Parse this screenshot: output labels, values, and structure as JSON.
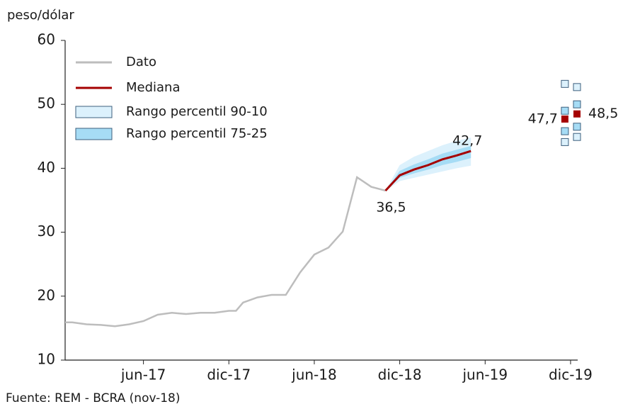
{
  "chart_data": {
    "type": "line",
    "y_label": "peso/dólar",
    "source": "Fuente: REM - BCRA (nov-18)",
    "xlim": [
      -5.5,
      30.5
    ],
    "xticks": [
      {
        "value": 0,
        "label": "jun-17"
      },
      {
        "value": 6,
        "label": "dic-17"
      },
      {
        "value": 12,
        "label": "jun-18"
      },
      {
        "value": 18,
        "label": "dic-18"
      },
      {
        "value": 24,
        "label": "jun-19"
      },
      {
        "value": 30,
        "label": "dic-19"
      }
    ],
    "ylim": [
      10,
      60
    ],
    "yticks": [
      10,
      20,
      30,
      40,
      50,
      60
    ],
    "grid": false,
    "legend": "top-left",
    "series": [
      {
        "name": "Dato",
        "color": "#bdbdbd",
        "x": [
          -5.5,
          -5,
          -4,
          -3,
          -2,
          -1,
          0,
          1,
          2,
          3,
          4,
          5,
          6,
          6.5,
          7,
          8,
          9,
          10,
          11,
          12,
          13,
          14,
          15,
          16,
          17
        ],
        "values": [
          15.9,
          15.9,
          15.6,
          15.5,
          15.3,
          15.6,
          16.1,
          17.1,
          17.4,
          17.2,
          17.4,
          17.4,
          17.7,
          17.7,
          19.0,
          19.8,
          20.2,
          20.2,
          23.7,
          26.5,
          27.6,
          30.1,
          38.6,
          37.1,
          36.5
        ]
      },
      {
        "name": "Mediana",
        "color": "#a50000",
        "x": [
          17,
          18,
          19,
          20,
          21,
          22,
          23
        ],
        "values": [
          36.5,
          38.9,
          39.8,
          40.5,
          41.4,
          42.0,
          42.7
        ],
        "value_labels": [
          "36,5",
          null,
          null,
          null,
          null,
          null,
          "42,7"
        ],
        "value_label_colors": [
          "#1a1a1a",
          null,
          null,
          null,
          null,
          null,
          "#a50000"
        ]
      }
    ],
    "bands": [
      {
        "name": "Rango percentil 90-10",
        "color": "#dcf1fc",
        "x": [
          17,
          18,
          19,
          20,
          21,
          22,
          23
        ],
        "upper": [
          36.5,
          40.5,
          41.8,
          42.7,
          43.6,
          44.3,
          44.8
        ],
        "lower": [
          36.5,
          38.0,
          38.5,
          39.0,
          39.5,
          40.0,
          40.4
        ]
      },
      {
        "name": "Rango percentil 75-25",
        "color": "#a6dcf5",
        "x": [
          17,
          18,
          19,
          20,
          21,
          22,
          23
        ],
        "upper": [
          36.5,
          39.6,
          40.6,
          41.4,
          42.3,
          42.9,
          43.5
        ],
        "lower": [
          36.5,
          38.5,
          39.2,
          39.8,
          40.5,
          41.0,
          41.6
        ]
      }
    ],
    "forecast": [
      {
        "x": 29.6,
        "p90": 53.2,
        "p75": 49.0,
        "median": 47.7,
        "p25": 45.8,
        "p10": 44.1,
        "median_label": "47,7"
      },
      {
        "x": 30.45,
        "p90": 52.7,
        "p75": 50.0,
        "median": 48.5,
        "p25": 46.5,
        "p10": 44.9,
        "median_label": "48,5"
      }
    ]
  }
}
